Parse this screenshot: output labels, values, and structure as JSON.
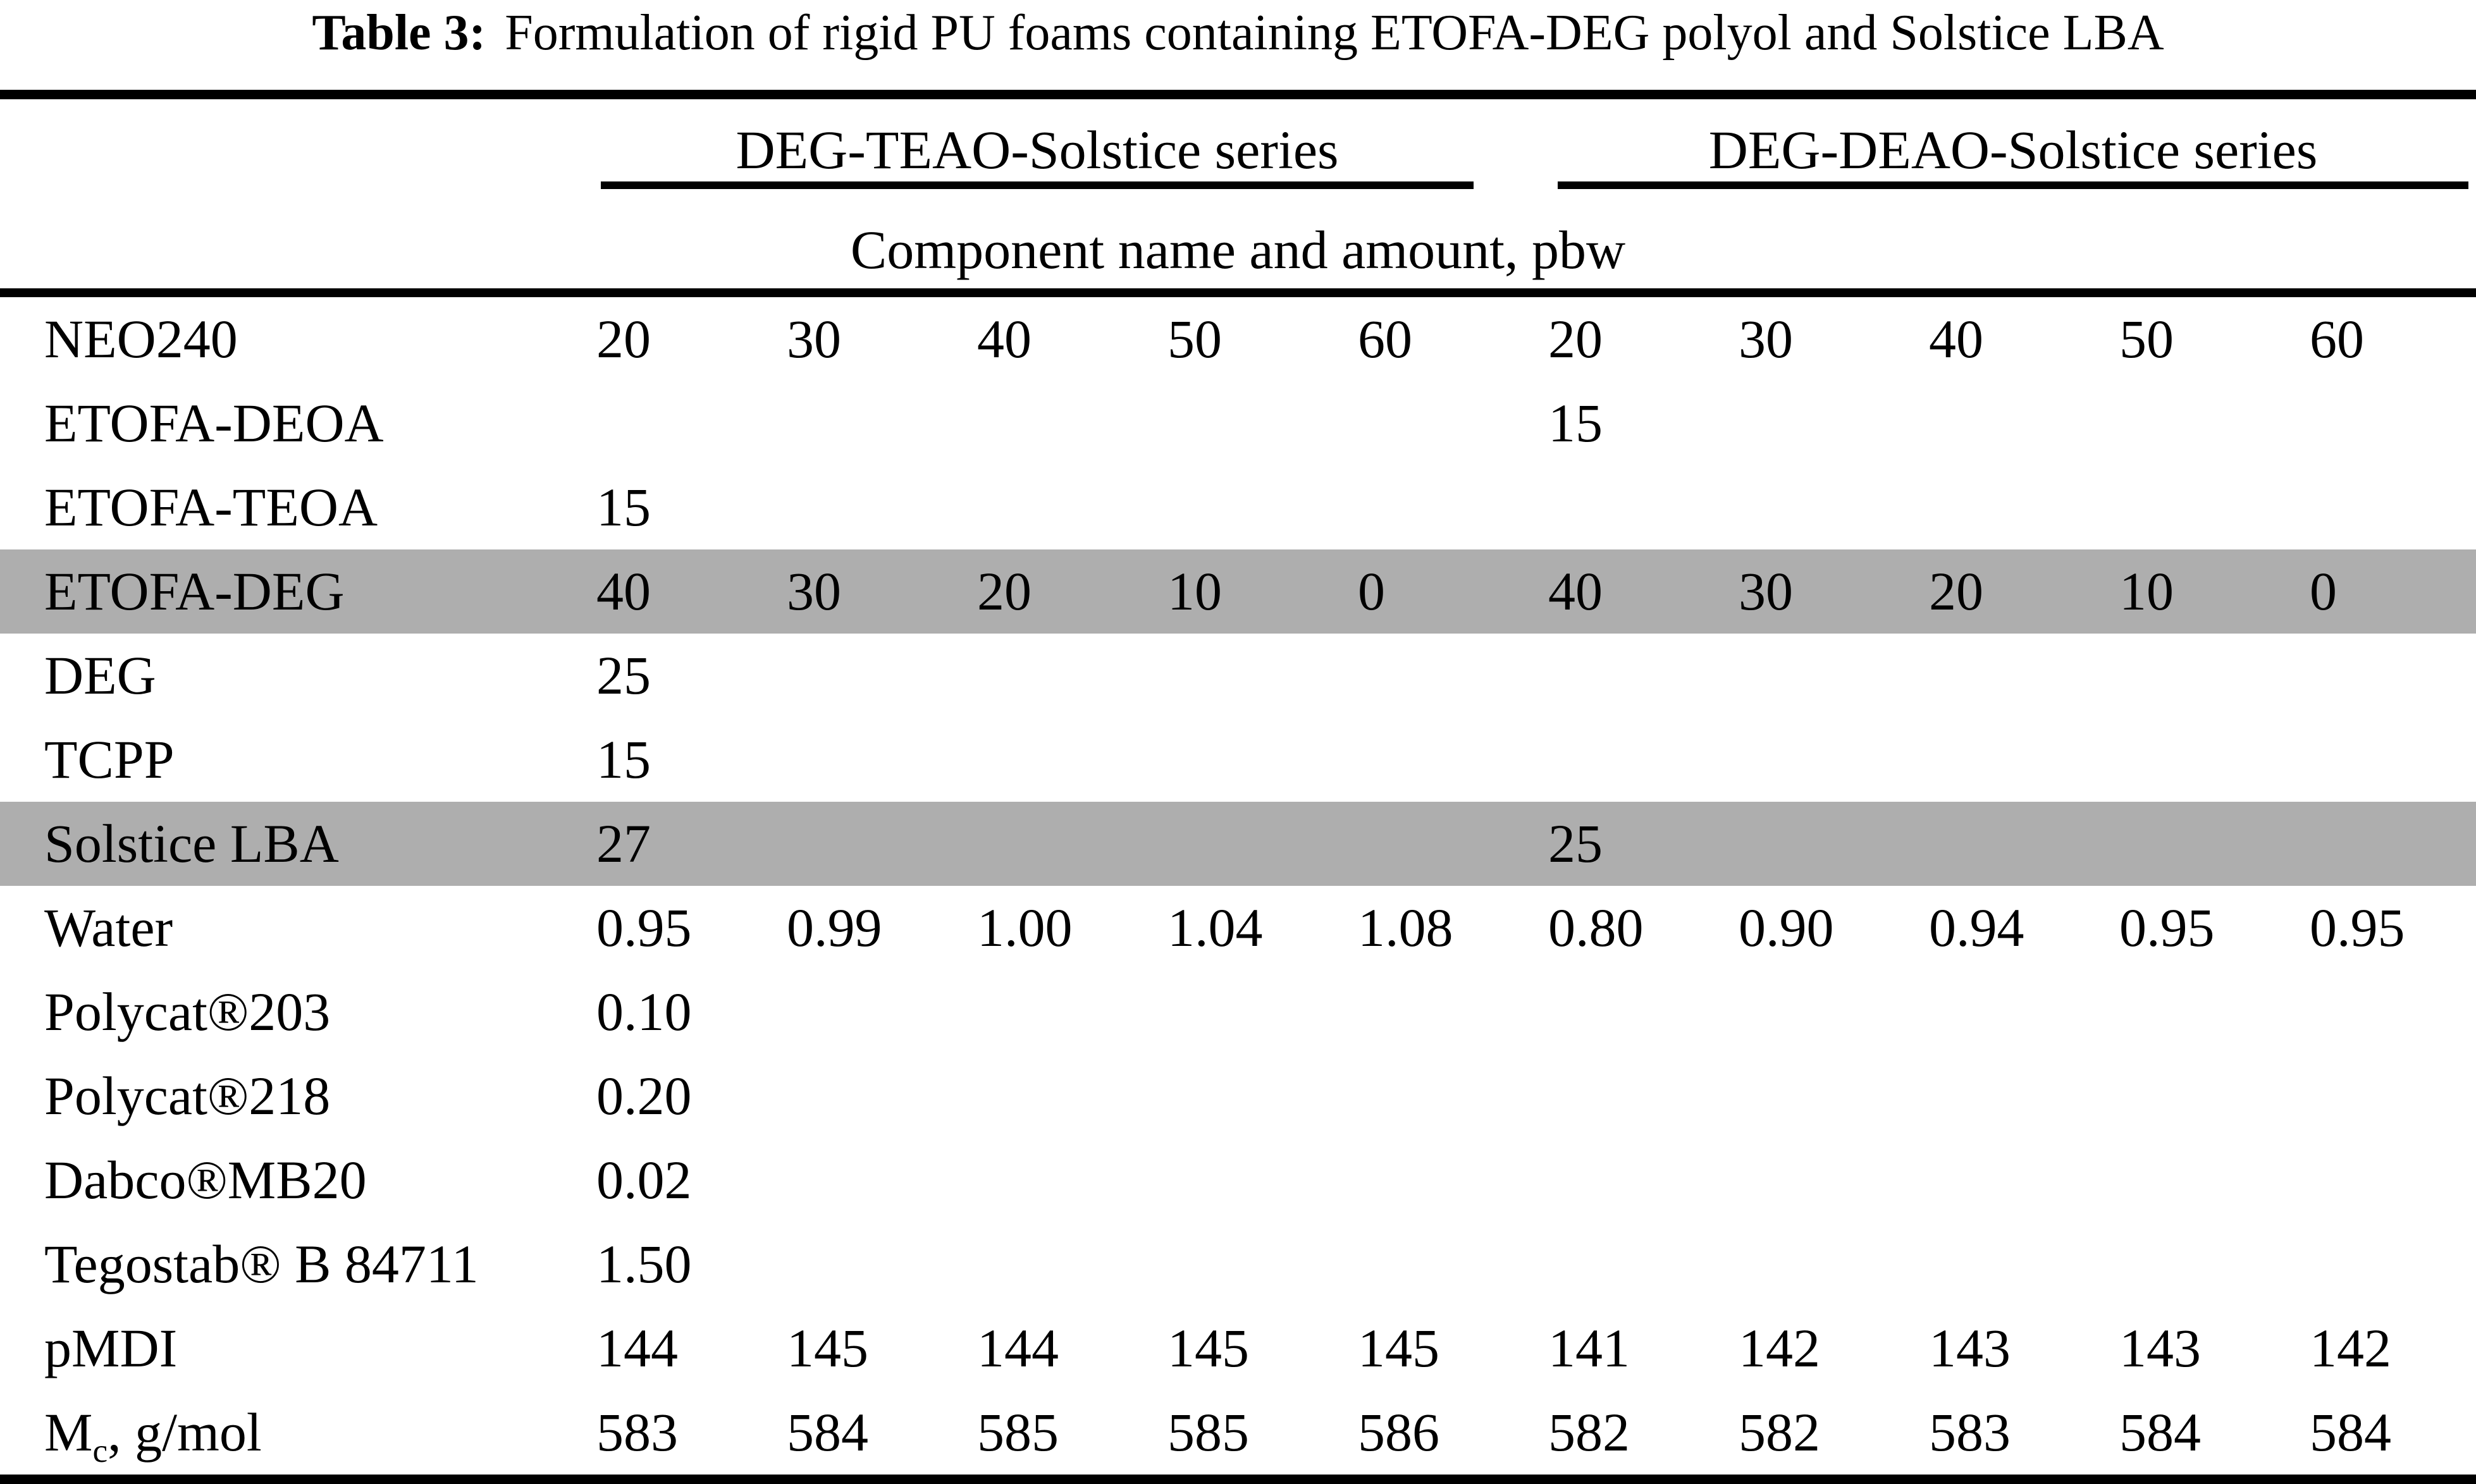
{
  "title": {
    "label": "Table 3:",
    "text": "Formulation of rigid PU foams containing ETOFA-DEG polyol and Solstice LBA"
  },
  "table": {
    "series_headers": [
      "DEG-TEAO-Solstice series",
      "DEG-DEAO-Solstice series"
    ],
    "series_span": 5,
    "subheader": "Component name and amount, pbw",
    "rows": [
      {
        "component": [
          "NEO240"
        ],
        "highlight": false,
        "values": [
          "20",
          "30",
          "40",
          "50",
          "60",
          "20",
          "30",
          "40",
          "50",
          "60"
        ]
      },
      {
        "component": [
          "ETOFA-DEOA"
        ],
        "highlight": false,
        "values": [
          "",
          "",
          "",
          "",
          "",
          "15",
          "",
          "",
          "",
          ""
        ]
      },
      {
        "component": [
          "ETOFA-TEOA"
        ],
        "highlight": false,
        "values": [
          "15",
          "",
          "",
          "",
          "",
          "",
          "",
          "",
          "",
          ""
        ]
      },
      {
        "component": [
          "ETOFA-DEG"
        ],
        "highlight": true,
        "values": [
          "40",
          "30",
          "20",
          "10",
          "0",
          "40",
          "30",
          "20",
          "10",
          "0"
        ]
      },
      {
        "component": [
          "DEG"
        ],
        "highlight": false,
        "values": [
          "25",
          "",
          "",
          "",
          "",
          "",
          "",
          "",
          "",
          ""
        ]
      },
      {
        "component": [
          "TCPP"
        ],
        "highlight": false,
        "values": [
          "15",
          "",
          "",
          "",
          "",
          "",
          "",
          "",
          "",
          ""
        ]
      },
      {
        "component": [
          "Solstice LBA"
        ],
        "highlight": true,
        "values": [
          "27",
          "",
          "",
          "",
          "",
          "25",
          "",
          "",
          "",
          ""
        ]
      },
      {
        "component": [
          "Water"
        ],
        "highlight": false,
        "values": [
          "0.95",
          "0.99",
          "1.00",
          "1.04",
          "1.08",
          "0.80",
          "0.90",
          "0.94",
          "0.95",
          "0.95"
        ]
      },
      {
        "component": [
          "Polycat®203"
        ],
        "highlight": false,
        "values": [
          "0.10",
          "",
          "",
          "",
          "",
          "",
          "",
          "",
          "",
          ""
        ]
      },
      {
        "component": [
          "Polycat®218"
        ],
        "highlight": false,
        "values": [
          "0.20",
          "",
          "",
          "",
          "",
          "",
          "",
          "",
          "",
          ""
        ]
      },
      {
        "component": [
          "Dabco®MB20"
        ],
        "highlight": false,
        "values": [
          "0.02",
          "",
          "",
          "",
          "",
          "",
          "",
          "",
          "",
          ""
        ]
      },
      {
        "component": [
          "Tegostab® B 84711"
        ],
        "highlight": false,
        "values": [
          "1.50",
          "",
          "",
          "",
          "",
          "",
          "",
          "",
          "",
          ""
        ]
      },
      {
        "component": [
          "pMDI"
        ],
        "highlight": false,
        "values": [
          "144",
          "145",
          "144",
          "145",
          "145",
          "141",
          "142",
          "143",
          "143",
          "142"
        ]
      },
      {
        "component": [
          "M",
          {
            "sub": "c"
          },
          ", g/mol"
        ],
        "highlight": false,
        "values": [
          "583",
          "584",
          "585",
          "585",
          "586",
          "582",
          "582",
          "583",
          "584",
          "584"
        ]
      }
    ]
  },
  "colors": {
    "highlight_row": "#aeaeae",
    "rule": "#000000",
    "text": "#000000",
    "background": "#ffffff"
  }
}
